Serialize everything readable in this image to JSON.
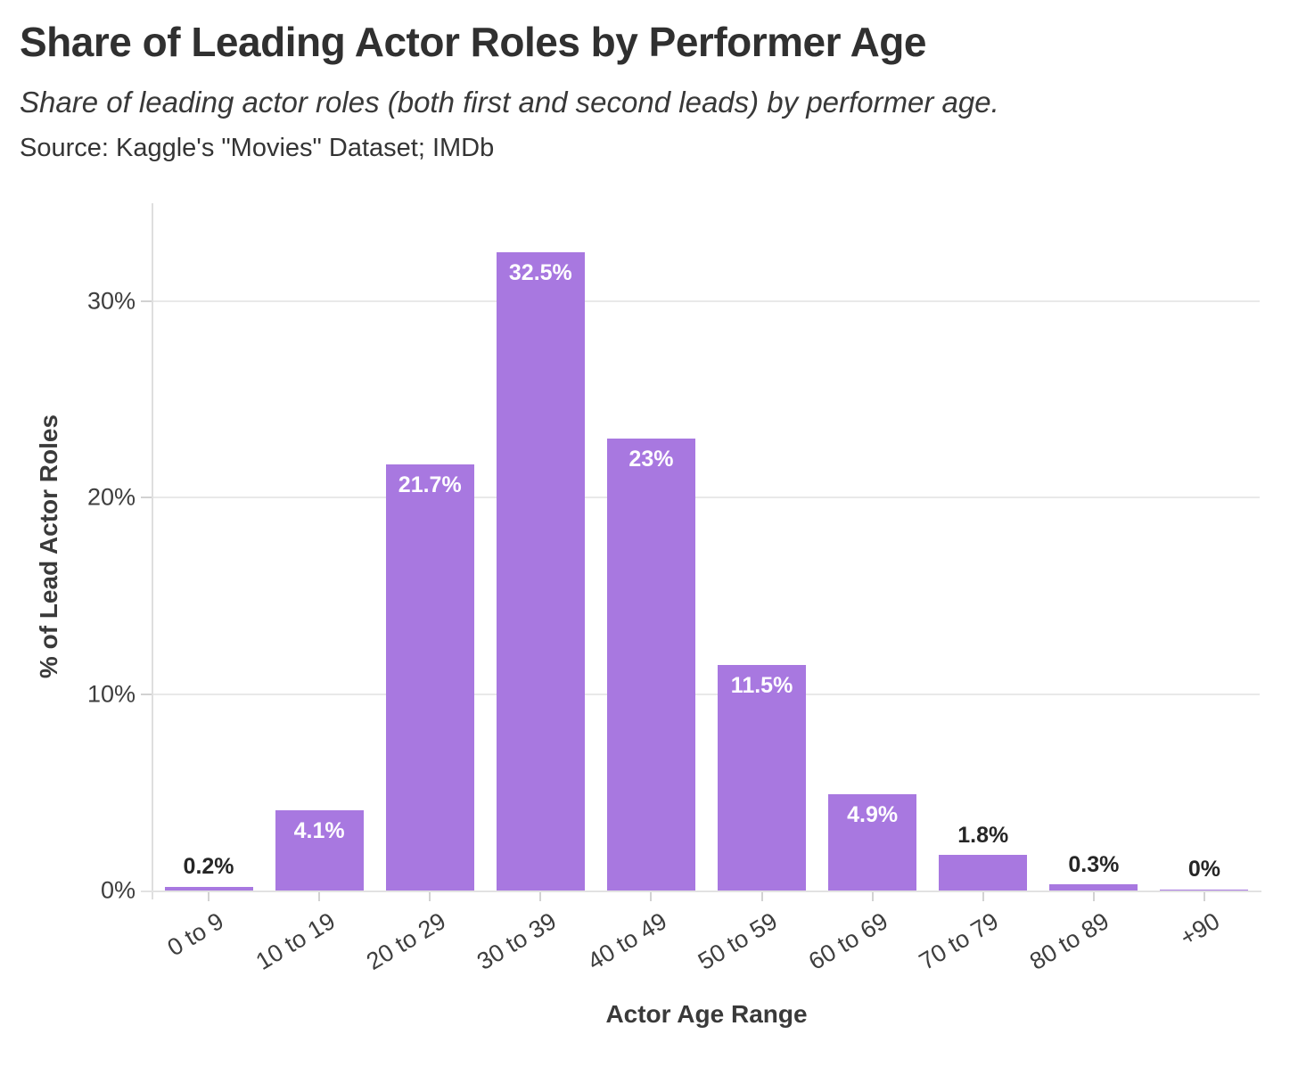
{
  "header": {
    "title": "Share of Leading Actor Roles by Performer Age",
    "subtitle": "Share of leading actor roles (both first and second leads) by performer age.",
    "source": "Source: Kaggle's \"Movies\" Dataset; IMDb"
  },
  "chart_data": {
    "type": "bar",
    "title": "Share of Leading Actor Roles by Performer Age",
    "subtitle": "Share of leading actor roles (both first and second leads) by performer age.",
    "source": "Source: Kaggle's \"Movies\" Dataset; IMDb",
    "categories": [
      "0 to 9",
      "10 to 19",
      "20 to 29",
      "30 to 39",
      "40 to 49",
      "50 to 59",
      "60 to 69",
      "70 to 79",
      "80 to 89",
      "+90"
    ],
    "values": [
      0.2,
      4.1,
      21.7,
      32.5,
      23,
      11.5,
      4.9,
      1.8,
      0.3,
      0
    ],
    "value_labels": [
      "0.2%",
      "4.1%",
      "21.7%",
      "32.5%",
      "23%",
      "11.5%",
      "4.9%",
      "1.8%",
      "0.3%",
      "0%"
    ],
    "xlabel": "Actor Age Range",
    "ylabel": "% of Lead Actor Roles",
    "ylim": [
      0,
      35
    ],
    "y_ticks": [
      {
        "value": 0,
        "label": "0%"
      },
      {
        "value": 10,
        "label": "10%"
      },
      {
        "value": 20,
        "label": "20%"
      },
      {
        "value": 30,
        "label": "30%"
      }
    ],
    "grid": "horizontal gridlines at 10/20/30, no vertical grid",
    "legend": "none",
    "colors": {
      "bar": "#a878e0",
      "label_inside": "#ffffff",
      "label_outside": "#262626",
      "gridline": "#e9e9e9",
      "axis_line": "#e0e0e0",
      "tick_mark": "#d2d2d2",
      "tick_text": "#3e3e3e",
      "title_text": "#303030"
    },
    "inside_label_min_value": 4
  }
}
